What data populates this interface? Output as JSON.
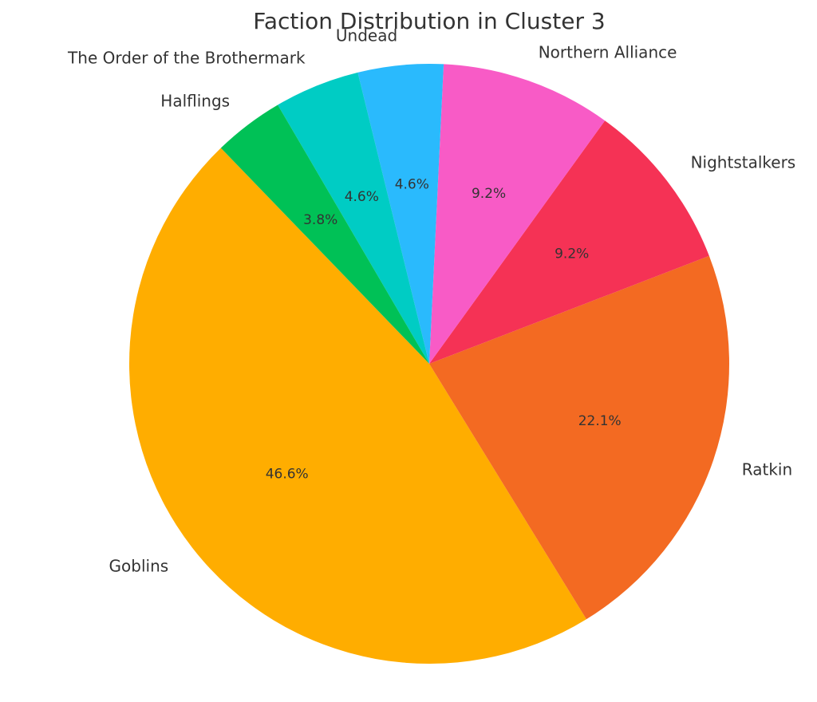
{
  "chart_data": {
    "type": "pie",
    "title": "Faction Distribution in Cluster 3",
    "slices": [
      {
        "label": "Goblins",
        "percent": "46.6%",
        "value": 46.6,
        "color": "#FFAD00"
      },
      {
        "label": "Ratkin",
        "percent": "22.1%",
        "value": 22.1,
        "color": "#F36A22"
      },
      {
        "label": "Nightstalkers",
        "percent": "9.2%",
        "value": 9.2,
        "color": "#F53255"
      },
      {
        "label": "Northern Alliance",
        "percent": "9.2%",
        "value": 9.2,
        "color": "#F85BC6"
      },
      {
        "label": "Undead",
        "percent": "4.6%",
        "value": 4.6,
        "color": "#2ABAFD"
      },
      {
        "label": "The Order of the Brothermark",
        "percent": "4.6%",
        "value": 4.6,
        "color": "#00CCC4"
      },
      {
        "label": "Halflings",
        "percent": "3.8%",
        "value": 3.8,
        "color": "#00C156"
      }
    ]
  }
}
